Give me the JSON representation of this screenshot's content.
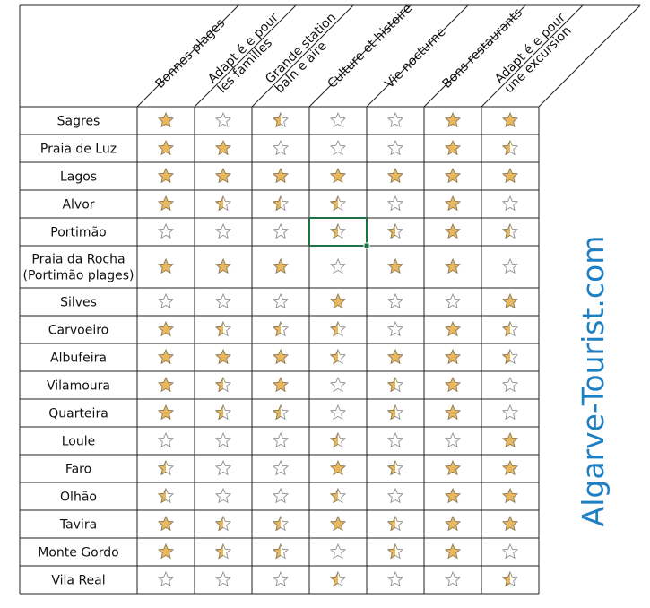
{
  "columns": [
    {
      "label": [
        "Bonnes plages"
      ]
    },
    {
      "label": [
        "Adapt é e pour",
        "les familles"
      ]
    },
    {
      "label": [
        "Grande station",
        "baln é aire"
      ]
    },
    {
      "label": [
        "Culture et histoire"
      ]
    },
    {
      "label": [
        "Vie nocturne"
      ]
    },
    {
      "label": [
        "Bons restaurants"
      ]
    },
    {
      "label": [
        "Adapt é e pour",
        "une excursion"
      ]
    }
  ],
  "rows": [
    {
      "label": [
        "Sagres"
      ],
      "ratings": [
        1,
        0,
        0.5,
        0,
        0,
        1,
        1
      ]
    },
    {
      "label": [
        "Praia de Luz"
      ],
      "ratings": [
        1,
        1,
        0,
        0,
        0,
        1,
        0.5
      ]
    },
    {
      "label": [
        "Lagos"
      ],
      "ratings": [
        1,
        1,
        1,
        1,
        1,
        1,
        1
      ]
    },
    {
      "label": [
        "Alvor"
      ],
      "ratings": [
        1,
        0.5,
        0.5,
        0.5,
        0,
        1,
        0
      ]
    },
    {
      "label": [
        "Portimão"
      ],
      "ratings": [
        0,
        0,
        0,
        0.5,
        0.5,
        1,
        0.5
      ]
    },
    {
      "label": [
        "Praia da Rocha",
        "(Portimão plages)"
      ],
      "ratings": [
        1,
        1,
        1,
        0,
        1,
        1,
        0
      ]
    },
    {
      "label": [
        "Silves"
      ],
      "ratings": [
        0,
        0,
        0,
        1,
        0,
        0,
        1
      ]
    },
    {
      "label": [
        "Carvoeiro"
      ],
      "ratings": [
        1,
        0.5,
        0.5,
        0.5,
        0,
        1,
        0.5
      ]
    },
    {
      "label": [
        "Albufeira"
      ],
      "ratings": [
        1,
        1,
        1,
        0.5,
        1,
        1,
        0.5
      ]
    },
    {
      "label": [
        "Vilamoura"
      ],
      "ratings": [
        1,
        0.5,
        1,
        0,
        0.5,
        1,
        0
      ]
    },
    {
      "label": [
        "Quarteira"
      ],
      "ratings": [
        1,
        0.5,
        0.5,
        0,
        0.5,
        1,
        0
      ]
    },
    {
      "label": [
        "Loule"
      ],
      "ratings": [
        0,
        0,
        0,
        0.5,
        0,
        0,
        1
      ]
    },
    {
      "label": [
        "Faro"
      ],
      "ratings": [
        0.5,
        0,
        0,
        1,
        0.5,
        1,
        1
      ]
    },
    {
      "label": [
        "Olhão"
      ],
      "ratings": [
        0.5,
        0,
        0,
        0.5,
        0,
        1,
        1
      ]
    },
    {
      "label": [
        "Tavira"
      ],
      "ratings": [
        1,
        0.5,
        0.5,
        1,
        0.5,
        1,
        1
      ]
    },
    {
      "label": [
        "Monte Gordo"
      ],
      "ratings": [
        1,
        0.5,
        0.5,
        0,
        0.5,
        1,
        0
      ]
    },
    {
      "label": [
        "Vila Real"
      ],
      "ratings": [
        0,
        0,
        0,
        0.5,
        0,
        0,
        0.5
      ]
    }
  ],
  "selected_cell": {
    "row": 4,
    "col": 3
  },
  "watermark": "Algarve-Tourist.com",
  "colors": {
    "star_fill": "#E8B860",
    "star_outline": "#8E7A52",
    "empty_outline": "#8E8E8E",
    "grid": "#222222",
    "selection": "#1E7145",
    "watermark": "#1E7FC2"
  },
  "icons": {
    "full": "star-full-icon",
    "half": "star-half-icon",
    "empty": "star-empty-icon"
  }
}
